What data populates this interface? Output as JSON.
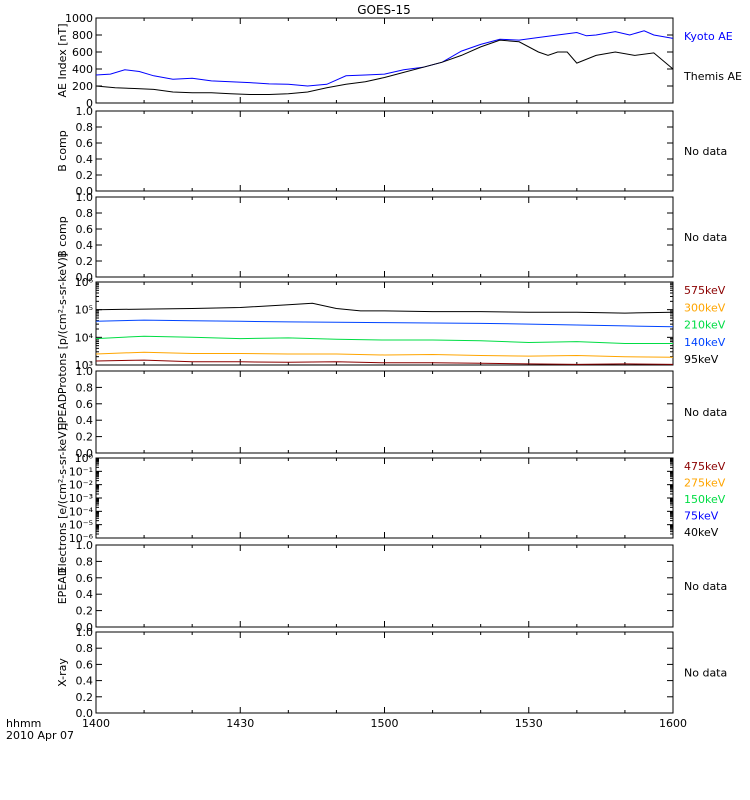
{
  "title": "GOES-15",
  "time_axis": {
    "ticks": [
      "1400",
      "1430",
      "1500",
      "1530",
      "1600"
    ],
    "label_top": "hhmm",
    "label_bottom": "2010 Apr 07",
    "range_minutes": [
      0,
      120
    ]
  },
  "colors": {
    "kyoto": "#0000ff",
    "themis": "#000000",
    "p575": "#8b0000",
    "p300": "#ffa500",
    "p210": "#00dd44",
    "p140": "#0044ff",
    "p95": "#000000",
    "e475": "#8b0000",
    "e275": "#ffa500",
    "e150": "#00dd44",
    "e75": "#0000ff",
    "e40": "#000000"
  },
  "chart_data": [
    {
      "type": "line",
      "ylabel": "AE Index [nT]",
      "ylim": [
        0,
        1000
      ],
      "yticks": [
        "0",
        "200",
        "400",
        "600",
        "800",
        "1000"
      ],
      "series": [
        {
          "name": "Kyoto AE",
          "color": "#0000ff",
          "x": [
            0,
            3,
            6,
            9,
            12,
            16,
            20,
            24,
            28,
            32,
            36,
            40,
            44,
            48,
            52,
            56,
            60,
            64,
            68,
            72,
            76,
            80,
            84,
            88,
            92,
            96,
            100,
            102,
            104,
            108,
            111,
            114,
            116,
            120
          ],
          "y": [
            330,
            340,
            390,
            370,
            320,
            280,
            290,
            260,
            250,
            240,
            225,
            220,
            200,
            220,
            320,
            330,
            340,
            390,
            420,
            480,
            610,
            690,
            750,
            740,
            770,
            800,
            830,
            790,
            800,
            840,
            800,
            850,
            800,
            760
          ]
        },
        {
          "name": "Themis AE",
          "color": "#000000",
          "x": [
            0,
            4,
            8,
            12,
            16,
            20,
            24,
            28,
            32,
            36,
            40,
            44,
            48,
            52,
            56,
            60,
            64,
            68,
            72,
            76,
            80,
            84,
            88,
            92,
            94,
            96,
            98,
            100,
            104,
            108,
            112,
            116,
            120
          ],
          "y": [
            200,
            180,
            170,
            160,
            130,
            120,
            120,
            110,
            100,
            100,
            110,
            130,
            180,
            220,
            250,
            300,
            360,
            420,
            480,
            560,
            660,
            740,
            720,
            600,
            560,
            600,
            600,
            470,
            560,
            600,
            560,
            590,
            400
          ]
        }
      ],
      "right_labels": [
        {
          "text": "Kyoto AE",
          "color": "#0000ff"
        },
        {
          "text": "Themis AE",
          "color": "#000000"
        }
      ]
    },
    {
      "type": "line",
      "ylabel": "B comp",
      "ylim": [
        0,
        1
      ],
      "yticks": [
        "0.0",
        "0.2",
        "0.4",
        "0.6",
        "0.8",
        "1.0"
      ],
      "series": [],
      "right_labels": [
        {
          "text": "No data",
          "color": "#000000"
        }
      ]
    },
    {
      "type": "line",
      "ylabel": "B comp",
      "ylim": [
        0,
        1
      ],
      "yticks": [
        "0.0",
        "0.2",
        "0.4",
        "0.6",
        "0.8",
        "1.0"
      ],
      "series": [],
      "right_labels": [
        {
          "text": "No data",
          "color": "#000000"
        }
      ]
    },
    {
      "type": "line",
      "ylabel": "Protons [p/(cm²-s-sr-keV)]",
      "yscale": "log",
      "ylim": [
        1000,
        1000000
      ],
      "yticks": [
        "10³",
        "10⁴",
        "10⁵",
        "10⁶"
      ],
      "series": [
        {
          "name": "575keV",
          "color": "#8b0000",
          "x": [
            0,
            10,
            20,
            30,
            40,
            50,
            60,
            70,
            80,
            90,
            100,
            110,
            120
          ],
          "y": [
            1400,
            1500,
            1300,
            1300,
            1250,
            1300,
            1200,
            1200,
            1150,
            1100,
            1050,
            1100,
            1050
          ]
        },
        {
          "name": "300keV",
          "color": "#ffa500",
          "x": [
            0,
            10,
            20,
            30,
            40,
            50,
            60,
            70,
            80,
            90,
            100,
            110,
            120
          ],
          "y": [
            2500,
            2900,
            2600,
            2600,
            2500,
            2500,
            2300,
            2400,
            2200,
            2100,
            2200,
            2000,
            1900
          ]
        },
        {
          "name": "210keV",
          "color": "#00dd44",
          "x": [
            0,
            10,
            20,
            30,
            40,
            50,
            60,
            70,
            80,
            90,
            100,
            110,
            120
          ],
          "y": [
            9000,
            11000,
            10000,
            9000,
            9500,
            8500,
            8000,
            8000,
            7500,
            6500,
            7000,
            6000,
            6000
          ]
        },
        {
          "name": "140keV",
          "color": "#0044ff",
          "x": [
            0,
            10,
            20,
            30,
            40,
            50,
            60,
            70,
            80,
            90,
            100,
            110,
            120
          ],
          "y": [
            38000,
            42000,
            40000,
            38000,
            36000,
            35000,
            34000,
            33000,
            32000,
            30000,
            28000,
            26000,
            24000
          ]
        },
        {
          "name": "95keV",
          "color": "#000000",
          "x": [
            0,
            10,
            20,
            30,
            40,
            45,
            50,
            55,
            60,
            70,
            80,
            90,
            100,
            110,
            120
          ],
          "y": [
            100000,
            105000,
            110000,
            120000,
            150000,
            170000,
            110000,
            90000,
            90000,
            85000,
            85000,
            80000,
            80000,
            75000,
            80000
          ]
        }
      ],
      "right_labels": [
        {
          "text": "575keV",
          "color": "#8b0000"
        },
        {
          "text": "300keV",
          "color": "#ffa500"
        },
        {
          "text": "210keV",
          "color": "#00dd44"
        },
        {
          "text": "140keV",
          "color": "#0044ff"
        },
        {
          "text": "95keV",
          "color": "#000000"
        }
      ]
    },
    {
      "type": "line",
      "ylabel": "EPEAD",
      "ylim": [
        0,
        1
      ],
      "yticks": [
        "0.0",
        "0.2",
        "0.4",
        "0.6",
        "0.8",
        "1.0"
      ],
      "series": [],
      "right_labels": [
        {
          "text": "No data",
          "color": "#000000"
        }
      ]
    },
    {
      "type": "line",
      "ylabel": "Electrons [e/(cm²-s-sr-keV)]",
      "yscale": "log",
      "ylim": [
        1e-06,
        1
      ],
      "yticks": [
        "10⁻⁶",
        "10⁻⁵",
        "10⁻⁴",
        "10⁻³",
        "10⁻²",
        "10⁻¹",
        "10⁰"
      ],
      "series": [],
      "right_labels": [
        {
          "text": "475keV",
          "color": "#8b0000"
        },
        {
          "text": "275keV",
          "color": "#ffa500"
        },
        {
          "text": "150keV",
          "color": "#00dd44"
        },
        {
          "text": "75keV",
          "color": "#0000ff"
        },
        {
          "text": "40keV",
          "color": "#000000"
        }
      ]
    },
    {
      "type": "line",
      "ylabel": "EPEAD",
      "ylim": [
        0,
        1
      ],
      "yticks": [
        "0.0",
        "0.2",
        "0.4",
        "0.6",
        "0.8",
        "1.0"
      ],
      "series": [],
      "right_labels": [
        {
          "text": "No data",
          "color": "#000000"
        }
      ]
    },
    {
      "type": "line",
      "ylabel": "X-ray",
      "ylim": [
        0,
        1
      ],
      "yticks": [
        "0.0",
        "0.2",
        "0.4",
        "0.6",
        "0.8",
        "1.0"
      ],
      "series": [],
      "right_labels": [
        {
          "text": "No data",
          "color": "#000000"
        }
      ]
    }
  ]
}
